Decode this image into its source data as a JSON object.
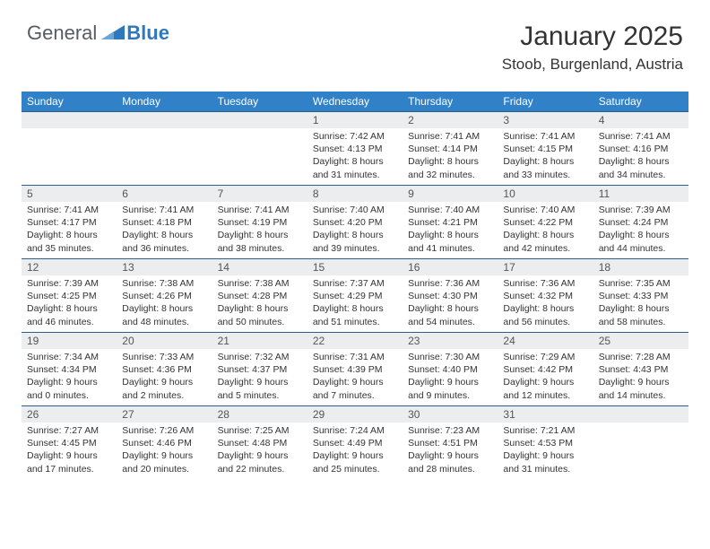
{
  "brand": {
    "part1": "General",
    "part2": "Blue"
  },
  "title": "January 2025",
  "location": "Stoob, Burgenland, Austria",
  "colors": {
    "header_bg": "#3081c7",
    "header_text": "#ffffff",
    "daynum_bg": "#ecedee",
    "rule": "#2f5e8a",
    "body_text": "#333333",
    "brand_gray": "#555c63",
    "brand_blue": "#2f78bd"
  },
  "typography": {
    "title_fontsize": 30,
    "location_fontsize": 17,
    "header_fontsize": 12,
    "daynum_fontsize": 12,
    "body_fontsize": 10.5
  },
  "weekdays": [
    "Sunday",
    "Monday",
    "Tuesday",
    "Wednesday",
    "Thursday",
    "Friday",
    "Saturday"
  ],
  "weeks": [
    [
      null,
      null,
      null,
      {
        "n": "1",
        "sr": "Sunrise: 7:42 AM",
        "ss": "Sunset: 4:13 PM",
        "d1": "Daylight: 8 hours",
        "d2": "and 31 minutes."
      },
      {
        "n": "2",
        "sr": "Sunrise: 7:41 AM",
        "ss": "Sunset: 4:14 PM",
        "d1": "Daylight: 8 hours",
        "d2": "and 32 minutes."
      },
      {
        "n": "3",
        "sr": "Sunrise: 7:41 AM",
        "ss": "Sunset: 4:15 PM",
        "d1": "Daylight: 8 hours",
        "d2": "and 33 minutes."
      },
      {
        "n": "4",
        "sr": "Sunrise: 7:41 AM",
        "ss": "Sunset: 4:16 PM",
        "d1": "Daylight: 8 hours",
        "d2": "and 34 minutes."
      }
    ],
    [
      {
        "n": "5",
        "sr": "Sunrise: 7:41 AM",
        "ss": "Sunset: 4:17 PM",
        "d1": "Daylight: 8 hours",
        "d2": "and 35 minutes."
      },
      {
        "n": "6",
        "sr": "Sunrise: 7:41 AM",
        "ss": "Sunset: 4:18 PM",
        "d1": "Daylight: 8 hours",
        "d2": "and 36 minutes."
      },
      {
        "n": "7",
        "sr": "Sunrise: 7:41 AM",
        "ss": "Sunset: 4:19 PM",
        "d1": "Daylight: 8 hours",
        "d2": "and 38 minutes."
      },
      {
        "n": "8",
        "sr": "Sunrise: 7:40 AM",
        "ss": "Sunset: 4:20 PM",
        "d1": "Daylight: 8 hours",
        "d2": "and 39 minutes."
      },
      {
        "n": "9",
        "sr": "Sunrise: 7:40 AM",
        "ss": "Sunset: 4:21 PM",
        "d1": "Daylight: 8 hours",
        "d2": "and 41 minutes."
      },
      {
        "n": "10",
        "sr": "Sunrise: 7:40 AM",
        "ss": "Sunset: 4:22 PM",
        "d1": "Daylight: 8 hours",
        "d2": "and 42 minutes."
      },
      {
        "n": "11",
        "sr": "Sunrise: 7:39 AM",
        "ss": "Sunset: 4:24 PM",
        "d1": "Daylight: 8 hours",
        "d2": "and 44 minutes."
      }
    ],
    [
      {
        "n": "12",
        "sr": "Sunrise: 7:39 AM",
        "ss": "Sunset: 4:25 PM",
        "d1": "Daylight: 8 hours",
        "d2": "and 46 minutes."
      },
      {
        "n": "13",
        "sr": "Sunrise: 7:38 AM",
        "ss": "Sunset: 4:26 PM",
        "d1": "Daylight: 8 hours",
        "d2": "and 48 minutes."
      },
      {
        "n": "14",
        "sr": "Sunrise: 7:38 AM",
        "ss": "Sunset: 4:28 PM",
        "d1": "Daylight: 8 hours",
        "d2": "and 50 minutes."
      },
      {
        "n": "15",
        "sr": "Sunrise: 7:37 AM",
        "ss": "Sunset: 4:29 PM",
        "d1": "Daylight: 8 hours",
        "d2": "and 51 minutes."
      },
      {
        "n": "16",
        "sr": "Sunrise: 7:36 AM",
        "ss": "Sunset: 4:30 PM",
        "d1": "Daylight: 8 hours",
        "d2": "and 54 minutes."
      },
      {
        "n": "17",
        "sr": "Sunrise: 7:36 AM",
        "ss": "Sunset: 4:32 PM",
        "d1": "Daylight: 8 hours",
        "d2": "and 56 minutes."
      },
      {
        "n": "18",
        "sr": "Sunrise: 7:35 AM",
        "ss": "Sunset: 4:33 PM",
        "d1": "Daylight: 8 hours",
        "d2": "and 58 minutes."
      }
    ],
    [
      {
        "n": "19",
        "sr": "Sunrise: 7:34 AM",
        "ss": "Sunset: 4:34 PM",
        "d1": "Daylight: 9 hours",
        "d2": "and 0 minutes."
      },
      {
        "n": "20",
        "sr": "Sunrise: 7:33 AM",
        "ss": "Sunset: 4:36 PM",
        "d1": "Daylight: 9 hours",
        "d2": "and 2 minutes."
      },
      {
        "n": "21",
        "sr": "Sunrise: 7:32 AM",
        "ss": "Sunset: 4:37 PM",
        "d1": "Daylight: 9 hours",
        "d2": "and 5 minutes."
      },
      {
        "n": "22",
        "sr": "Sunrise: 7:31 AM",
        "ss": "Sunset: 4:39 PM",
        "d1": "Daylight: 9 hours",
        "d2": "and 7 minutes."
      },
      {
        "n": "23",
        "sr": "Sunrise: 7:30 AM",
        "ss": "Sunset: 4:40 PM",
        "d1": "Daylight: 9 hours",
        "d2": "and 9 minutes."
      },
      {
        "n": "24",
        "sr": "Sunrise: 7:29 AM",
        "ss": "Sunset: 4:42 PM",
        "d1": "Daylight: 9 hours",
        "d2": "and 12 minutes."
      },
      {
        "n": "25",
        "sr": "Sunrise: 7:28 AM",
        "ss": "Sunset: 4:43 PM",
        "d1": "Daylight: 9 hours",
        "d2": "and 14 minutes."
      }
    ],
    [
      {
        "n": "26",
        "sr": "Sunrise: 7:27 AM",
        "ss": "Sunset: 4:45 PM",
        "d1": "Daylight: 9 hours",
        "d2": "and 17 minutes."
      },
      {
        "n": "27",
        "sr": "Sunrise: 7:26 AM",
        "ss": "Sunset: 4:46 PM",
        "d1": "Daylight: 9 hours",
        "d2": "and 20 minutes."
      },
      {
        "n": "28",
        "sr": "Sunrise: 7:25 AM",
        "ss": "Sunset: 4:48 PM",
        "d1": "Daylight: 9 hours",
        "d2": "and 22 minutes."
      },
      {
        "n": "29",
        "sr": "Sunrise: 7:24 AM",
        "ss": "Sunset: 4:49 PM",
        "d1": "Daylight: 9 hours",
        "d2": "and 25 minutes."
      },
      {
        "n": "30",
        "sr": "Sunrise: 7:23 AM",
        "ss": "Sunset: 4:51 PM",
        "d1": "Daylight: 9 hours",
        "d2": "and 28 minutes."
      },
      {
        "n": "31",
        "sr": "Sunrise: 7:21 AM",
        "ss": "Sunset: 4:53 PM",
        "d1": "Daylight: 9 hours",
        "d2": "and 31 minutes."
      },
      null
    ]
  ]
}
